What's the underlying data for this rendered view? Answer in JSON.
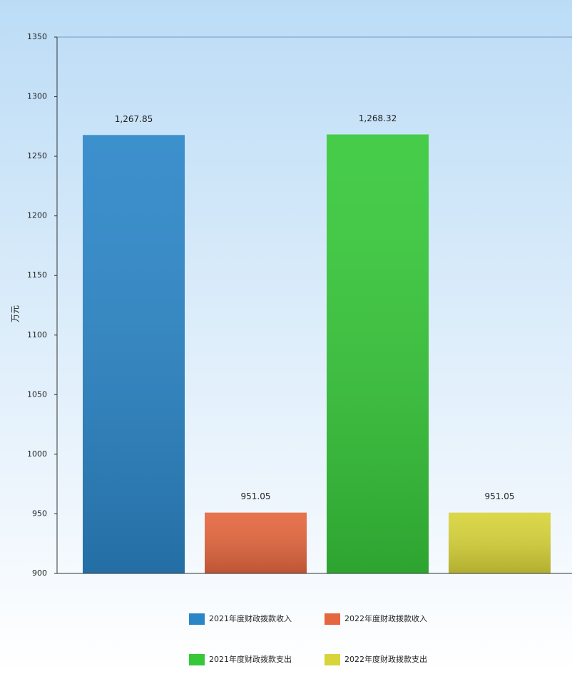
{
  "chart_data": {
    "type": "bar",
    "y_label": "万元",
    "ylim": [
      900,
      1350
    ],
    "yticks": [
      900,
      950,
      1000,
      1050,
      1100,
      1150,
      1200,
      1250,
      1300,
      1350
    ],
    "series": [
      {
        "name": "2021年度财政拨款收入",
        "color": "#2b86c8",
        "values": [
          1267.85
        ],
        "value_labels": [
          "1,267.85"
        ]
      },
      {
        "name": "2022年度财政拨款收入",
        "color": "#e5673f",
        "values": [
          951.05
        ],
        "value_labels": [
          "951.05"
        ]
      },
      {
        "name": "2021年度财政拨款支出",
        "color": "#37c83a",
        "values": [
          1268.32
        ],
        "value_labels": [
          "1,268.32"
        ]
      },
      {
        "name": "2022年度财政拨款支出",
        "color": "#d8d43a",
        "values": [
          951.05
        ],
        "value_labels": [
          "951.05"
        ]
      }
    ]
  }
}
